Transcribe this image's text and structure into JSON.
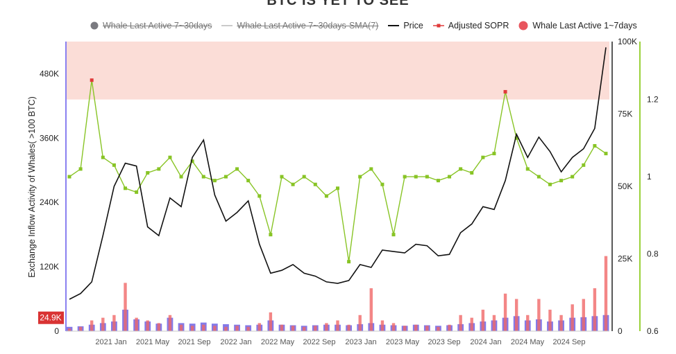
{
  "chart_data": {
    "type": "line",
    "title": "BTC IS YET TO SEE",
    "y_left_label": "Exchange Inflow Activity of Whales( >100 BTC)",
    "y_left_ticks": [
      "0",
      "120K",
      "240K",
      "360K",
      "480K"
    ],
    "y_left_range": [
      0,
      540000
    ],
    "y_price_ticks": [
      "0",
      "25K",
      "50K",
      "75K",
      "100K"
    ],
    "y_price_range": [
      0,
      100000
    ],
    "y_sopr_ticks": [
      "0.6",
      "0.8",
      "1",
      "1.2"
    ],
    "y_sopr_range": [
      0.6,
      1.35
    ],
    "x_ticks": [
      "2021 Jan",
      "2021 May",
      "2021 Sep",
      "2022 Jan",
      "2022 May",
      "2022 Sep",
      "2023 Jan",
      "2023 May",
      "2023 Sep",
      "2024 Jan",
      "2024 May",
      "2024 Sep"
    ],
    "current_value_badge": "24.9K",
    "highlight_band_sopr": [
      1.2,
      1.35
    ],
    "colors": {
      "price": "#111111",
      "sopr": "#88c425",
      "sopr_high": "#e03a3a",
      "whale_7_30": "#5b4ee0",
      "whale_1_7": "#f06868",
      "band": "#fbd9d3",
      "left_axis": "#8a80f0",
      "right_axis": "#9bd13a"
    },
    "series": [
      {
        "name": "Price",
        "x": [
          "2020-11",
          "2021-01",
          "2021-02",
          "2021-03",
          "2021-04",
          "2021-05",
          "2021-06",
          "2021-07",
          "2021-08",
          "2021-09",
          "2021-10",
          "2021-11",
          "2021-12",
          "2022-01",
          "2022-02",
          "2022-03",
          "2022-04",
          "2022-05",
          "2022-06",
          "2022-07",
          "2022-08",
          "2022-09",
          "2022-10",
          "2022-11",
          "2022-12",
          "2023-01",
          "2023-02",
          "2023-03",
          "2023-04",
          "2023-05",
          "2023-06",
          "2023-07",
          "2023-08",
          "2023-09",
          "2023-10",
          "2023-11",
          "2023-12",
          "2024-01",
          "2024-02",
          "2024-03",
          "2024-04",
          "2024-05",
          "2024-06",
          "2024-07",
          "2024-08",
          "2024-09",
          "2024-10",
          "2024-11",
          "2024-12"
        ],
        "values": [
          11000,
          13000,
          17000,
          33000,
          50000,
          58000,
          57000,
          36000,
          33000,
          46000,
          43000,
          60000,
          66000,
          47000,
          38000,
          41000,
          45000,
          30000,
          20000,
          21000,
          23000,
          20000,
          19000,
          17000,
          16500,
          17500,
          23000,
          22000,
          28000,
          27500,
          27000,
          30000,
          29500,
          26000,
          26500,
          34000,
          37000,
          43000,
          42000,
          52000,
          68000,
          60000,
          67000,
          62000,
          55000,
          60000,
          63000,
          70000,
          98000
        ]
      },
      {
        "name": "Adjusted SOPR",
        "x": [
          "2020-11",
          "2021-01",
          "2021-02",
          "2021-03",
          "2021-04",
          "2021-05",
          "2021-06",
          "2021-07",
          "2021-08",
          "2021-09",
          "2021-10",
          "2021-11",
          "2021-12",
          "2022-01",
          "2022-02",
          "2022-03",
          "2022-04",
          "2022-05",
          "2022-06",
          "2022-07",
          "2022-08",
          "2022-09",
          "2022-10",
          "2022-11",
          "2022-12",
          "2023-01",
          "2023-02",
          "2023-03",
          "2023-04",
          "2023-05",
          "2023-06",
          "2023-07",
          "2023-08",
          "2023-09",
          "2023-10",
          "2023-11",
          "2023-12",
          "2024-01",
          "2024-02",
          "2024-03",
          "2024-04",
          "2024-05",
          "2024-06",
          "2024-07",
          "2024-08",
          "2024-09",
          "2024-10",
          "2024-11",
          "2024-12"
        ],
        "values": [
          1.0,
          1.02,
          1.25,
          1.05,
          1.03,
          0.97,
          0.96,
          1.01,
          1.02,
          1.05,
          1.0,
          1.04,
          1.0,
          0.99,
          1.0,
          1.02,
          0.99,
          0.95,
          0.85,
          1.0,
          0.98,
          1.0,
          0.98,
          0.95,
          0.97,
          0.78,
          1.0,
          1.02,
          0.98,
          0.85,
          1.0,
          1.0,
          1.0,
          0.99,
          1.0,
          1.02,
          1.01,
          1.05,
          1.06,
          1.22,
          1.1,
          1.02,
          1.0,
          0.98,
          0.99,
          1.0,
          1.03,
          1.08,
          1.06
        ]
      },
      {
        "name": "Whale Last Active 7~30days",
        "values": [
          8000,
          9000,
          12000,
          15000,
          18000,
          40000,
          22000,
          18000,
          14000,
          25000,
          15000,
          14000,
          16000,
          14000,
          13000,
          12000,
          11000,
          12000,
          20000,
          12000,
          11000,
          10000,
          11000,
          12000,
          12000,
          11000,
          13000,
          15000,
          12000,
          11000,
          10000,
          12000,
          11000,
          10000,
          11000,
          13000,
          15000,
          18000,
          20000,
          25000,
          28000,
          20000,
          22000,
          18000,
          20000,
          25000,
          26000,
          28000,
          30000
        ]
      },
      {
        "name": "Whale Last Active 1~7days",
        "values": [
          5000,
          8000,
          20000,
          25000,
          30000,
          90000,
          25000,
          20000,
          15000,
          30000,
          12000,
          10000,
          12000,
          10000,
          8000,
          10000,
          8000,
          15000,
          35000,
          12000,
          10000,
          8000,
          10000,
          15000,
          20000,
          12000,
          30000,
          80000,
          20000,
          15000,
          10000,
          12000,
          10000,
          8000,
          12000,
          30000,
          25000,
          40000,
          30000,
          70000,
          60000,
          30000,
          60000,
          40000,
          30000,
          50000,
          60000,
          80000,
          140000
        ]
      },
      {
        "name": "Whale Last Active 7~30days-SMA(7)",
        "values": []
      }
    ],
    "legend": [
      {
        "label": "Whale Last Active 7~30days",
        "struck": true
      },
      {
        "label": "Whale Last Active 7~30days-SMA(7)",
        "struck": true
      },
      {
        "label": "Price",
        "struck": false
      },
      {
        "label": "Adjusted SOPR",
        "struck": false
      },
      {
        "label": "Whale Last Active 1~7days",
        "struck": false
      }
    ],
    "legend_placement": "top"
  }
}
